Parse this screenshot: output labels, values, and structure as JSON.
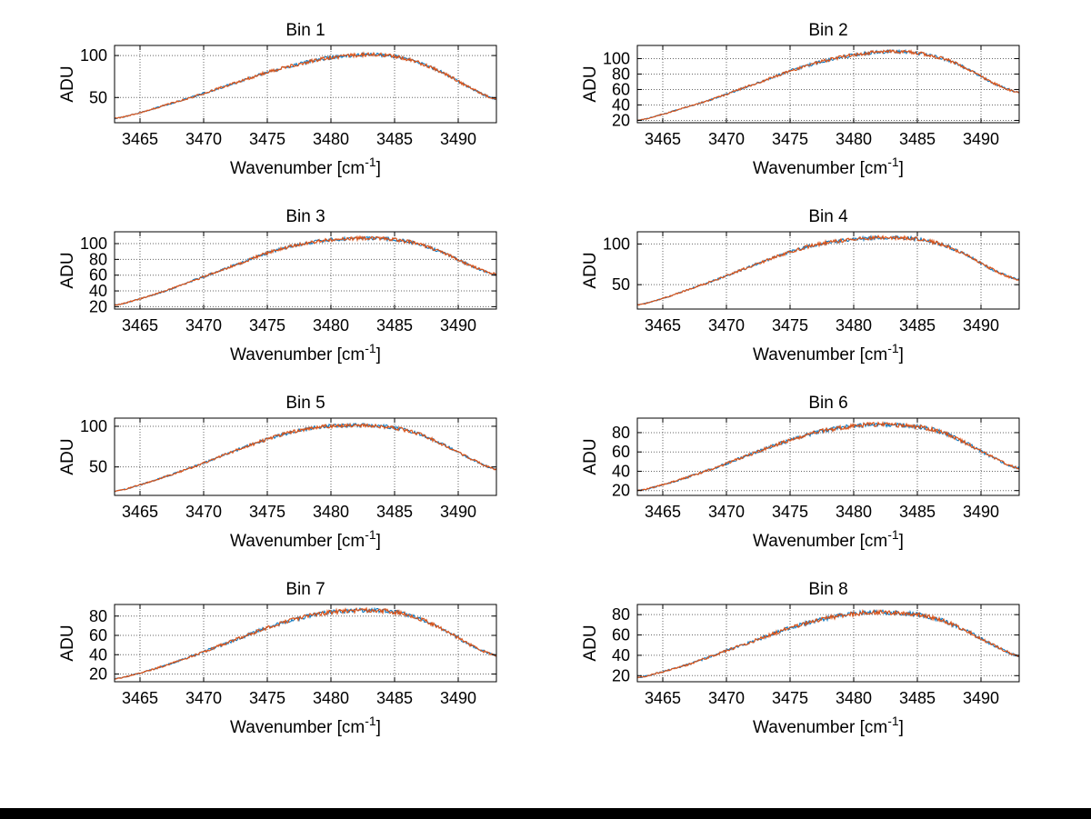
{
  "figure": {
    "background": "#ffffff",
    "footer_bar_color": "#000000"
  },
  "chart_data": {
    "type": "line",
    "layout": {
      "rows": 4,
      "cols": 2,
      "grid": "dotted",
      "legend": "none"
    },
    "xlabel": {
      "prefix": "Wavenumber [cm",
      "sup": "-1",
      "suffix": "]"
    },
    "ylabel": "ADU",
    "xlim": [
      3463,
      3493
    ],
    "xticks": [
      3465,
      3470,
      3475,
      3480,
      3485,
      3490
    ],
    "x_control": [
      3463,
      3465,
      3467,
      3469,
      3471,
      3473,
      3475,
      3477,
      3479,
      3481,
      3483,
      3485,
      3487,
      3489,
      3491,
      3493
    ],
    "colors": {
      "series_under": "#0072BD",
      "series_over": "#D95319",
      "grid": "#666666",
      "axis": "#000000",
      "text": "#000000"
    },
    "subplots": [
      {
        "title": "Bin 1",
        "yticks": [
          50,
          100
        ],
        "ylim": [
          20,
          112
        ],
        "y": [
          25,
          32,
          41,
          50,
          60,
          70,
          80,
          88,
          95,
          99,
          101,
          99,
          91,
          78,
          61,
          48
        ]
      },
      {
        "title": "Bin 2",
        "yticks": [
          20,
          40,
          60,
          80,
          100
        ],
        "ylim": [
          17,
          117
        ],
        "y": [
          20,
          28,
          38,
          48,
          60,
          72,
          84,
          94,
          102,
          107,
          109,
          107,
          100,
          86,
          68,
          56
        ]
      },
      {
        "title": "Bin 3",
        "yticks": [
          20,
          40,
          60,
          80,
          100
        ],
        "ylim": [
          17,
          115
        ],
        "y": [
          22,
          30,
          40,
          52,
          64,
          76,
          88,
          97,
          103,
          106,
          107,
          105,
          99,
          87,
          72,
          61
        ]
      },
      {
        "title": "Bin 4",
        "yticks": [
          50,
          100
        ],
        "ylim": [
          20,
          115
        ],
        "y": [
          25,
          33,
          44,
          55,
          67,
          79,
          90,
          99,
          104,
          107,
          108,
          106,
          99,
          85,
          68,
          56
        ]
      },
      {
        "title": "Bin 5",
        "yticks": [
          50,
          100
        ],
        "ylim": [
          15,
          110
        ],
        "y": [
          20,
          28,
          38,
          49,
          61,
          73,
          84,
          93,
          99,
          101,
          101,
          98,
          90,
          76,
          60,
          47
        ]
      },
      {
        "title": "Bin 6",
        "yticks": [
          20,
          40,
          60,
          80
        ],
        "ylim": [
          15,
          95
        ],
        "y": [
          20,
          26,
          34,
          43,
          53,
          63,
          72,
          80,
          85,
          88,
          88,
          86,
          80,
          68,
          54,
          43
        ]
      },
      {
        "title": "Bin 7",
        "yticks": [
          20,
          40,
          60,
          80
        ],
        "ylim": [
          12,
          92
        ],
        "y": [
          15,
          21,
          29,
          38,
          48,
          58,
          68,
          76,
          82,
          85,
          86,
          84,
          77,
          65,
          50,
          39
        ]
      },
      {
        "title": "Bin 8",
        "yticks": [
          20,
          40,
          60,
          80
        ],
        "ylim": [
          14,
          90
        ],
        "y": [
          18,
          24,
          31,
          40,
          49,
          58,
          67,
          74,
          79,
          82,
          82,
          80,
          74,
          63,
          50,
          39
        ]
      }
    ]
  }
}
